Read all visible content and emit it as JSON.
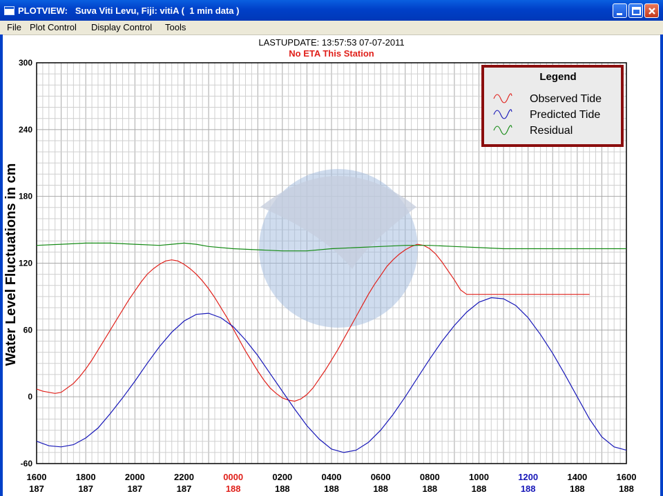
{
  "window": {
    "title": "PLOTVIEW:   Suva Viti Levu, Fiji: vitiA (  1 min data )"
  },
  "menu": [
    "File",
    "Plot Control",
    "Display Control",
    "Tools"
  ],
  "header": {
    "lastupdate": "LASTUPDATE: 13:57:53  07-07-2011",
    "eta": "No ETA This Station"
  },
  "colors": {
    "observed": "#e0201a",
    "predicted": "#1616b8",
    "residual": "#138a13",
    "legend_border": "#8b0e0e",
    "grid": "#b8b8b8",
    "watermark": "#9fb9de"
  },
  "chart_data": {
    "type": "line",
    "title": "",
    "xlabel": "",
    "ylabel": "Water Level Fluctuations in cm",
    "ylim": [
      -60,
      300
    ],
    "yticks": [
      300,
      240,
      180,
      120,
      60,
      0,
      -60
    ],
    "xlim": [
      0,
      48
    ],
    "xticks": [
      {
        "time": "1600",
        "day": "187",
        "color": "#000000"
      },
      {
        "time": "1800",
        "day": "187",
        "color": "#000000"
      },
      {
        "time": "2000",
        "day": "187",
        "color": "#000000"
      },
      {
        "time": "2200",
        "day": "187",
        "color": "#000000"
      },
      {
        "time": "0000",
        "day": "188",
        "color": "#e0201a"
      },
      {
        "time": "0200",
        "day": "188",
        "color": "#000000"
      },
      {
        "time": "0400",
        "day": "188",
        "color": "#000000"
      },
      {
        "time": "0600",
        "day": "188",
        "color": "#000000"
      },
      {
        "time": "0800",
        "day": "188",
        "color": "#000000"
      },
      {
        "time": "1000",
        "day": "188",
        "color": "#000000"
      },
      {
        "time": "1200",
        "day": "188",
        "color": "#1616b8"
      },
      {
        "time": "1400",
        "day": "188",
        "color": "#000000"
      },
      {
        "time": "1600",
        "day": "188",
        "color": "#000000"
      }
    ],
    "grid": true,
    "legend": {
      "title": "Legend",
      "placement": "top-right",
      "entries": [
        "Observed Tide",
        "Predicted Tide",
        "Residual"
      ]
    },
    "x_units": "hours since 1600 day 187",
    "series": [
      {
        "name": "Observed Tide",
        "color": "#e0201a",
        "x": [
          0,
          0.5,
          1,
          1.5,
          2,
          2.5,
          3,
          3.5,
          4,
          4.5,
          5,
          5.5,
          6,
          6.5,
          7,
          7.5,
          8,
          8.5,
          9,
          9.5,
          10,
          10.5,
          11,
          11.5,
          12,
          12.5,
          13,
          13.5,
          14,
          14.5,
          15,
          15.5,
          16,
          16.5,
          17,
          17.5,
          18,
          18.5,
          19,
          19.5,
          20,
          20.5,
          21,
          21.5,
          22,
          22.5,
          23,
          23.5,
          24,
          24.5,
          25,
          25.5,
          26,
          26.5,
          27,
          27.5,
          28,
          28.5,
          29,
          29.5,
          30,
          30.5,
          31,
          31.5,
          32,
          32.5,
          33,
          33.5,
          34,
          34.5,
          35,
          35.5,
          36,
          36.5,
          37,
          37.5,
          38,
          38.5,
          39,
          39.5,
          40,
          40.5,
          41,
          41.5,
          42,
          42.5,
          43,
          43.5,
          44,
          44.5,
          45
        ],
        "values": [
          7,
          5,
          4,
          3,
          4,
          8,
          12,
          18,
          25,
          33,
          42,
          51,
          60,
          69,
          78,
          87,
          95,
          103,
          110,
          115,
          119,
          122,
          123,
          122,
          119,
          115,
          110,
          104,
          97,
          89,
          80,
          71,
          61,
          51,
          41,
          32,
          23,
          15,
          8,
          3,
          -1,
          -3,
          -4,
          -2,
          2,
          8,
          16,
          24,
          33,
          42,
          52,
          62,
          72,
          82,
          92,
          101,
          109,
          117,
          123,
          128,
          132,
          135,
          137,
          136,
          133,
          128,
          121,
          113,
          105,
          96,
          92,
          92,
          92,
          92,
          92,
          92,
          92,
          92,
          92,
          92,
          92,
          92,
          92,
          92,
          92,
          92,
          92,
          92,
          92,
          92,
          92
        ]
      },
      {
        "name": "Predicted Tide",
        "color": "#1616b8",
        "x": [
          0,
          1,
          2,
          3,
          4,
          5,
          6,
          7,
          8,
          9,
          10,
          11,
          12,
          13,
          14,
          15,
          16,
          17,
          18,
          19,
          20,
          21,
          22,
          23,
          24,
          25,
          26,
          27,
          28,
          29,
          30,
          31,
          32,
          33,
          34,
          35,
          36,
          37,
          38,
          39,
          40,
          41,
          42,
          43,
          44,
          45,
          46,
          47,
          48
        ],
        "values": [
          -40,
          -44,
          -45,
          -43,
          -37,
          -28,
          -15,
          -1,
          14,
          30,
          45,
          58,
          68,
          74,
          75,
          71,
          63,
          51,
          37,
          21,
          5,
          -11,
          -26,
          -38,
          -47,
          -50,
          -48,
          -41,
          -30,
          -16,
          0,
          17,
          34,
          50,
          64,
          76,
          85,
          89,
          88,
          82,
          71,
          56,
          39,
          20,
          0,
          -20,
          -36,
          -45,
          -48
        ]
      },
      {
        "name": "Residual",
        "color": "#138a13",
        "x": [
          0,
          2,
          4,
          6,
          8,
          10,
          11,
          12,
          13,
          14,
          16,
          18,
          20,
          22,
          24,
          26,
          28,
          30,
          32,
          34,
          36,
          38,
          40,
          42,
          44,
          46,
          48
        ],
        "values": [
          136,
          137,
          138,
          138,
          137,
          136,
          137,
          138,
          137,
          135,
          133,
          132,
          131,
          131,
          133,
          134,
          135,
          136,
          136,
          135,
          134,
          133,
          133,
          133,
          133,
          133,
          133
        ]
      }
    ]
  }
}
